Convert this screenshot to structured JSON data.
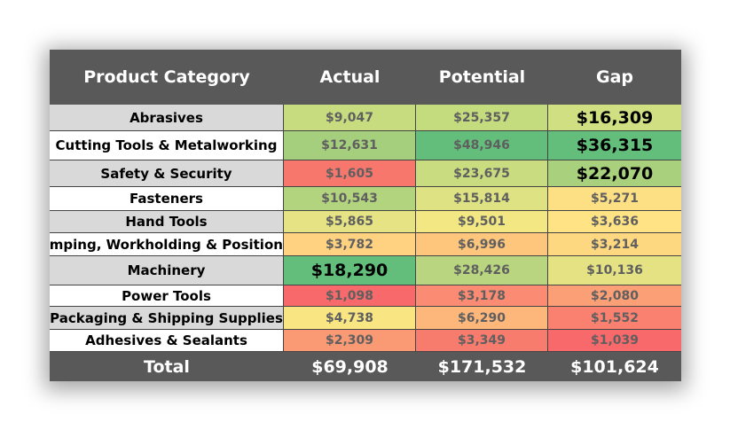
{
  "table": {
    "header": [
      "Product Category",
      "Actual",
      "Potential",
      "Gap"
    ],
    "rows": [
      [
        "Abrasives",
        "$9,047",
        "$25,357",
        "$16,309"
      ],
      [
        "Cutting Tools & Metalworking",
        "$12,631",
        "$48,946",
        "$36,315"
      ],
      [
        "Safety & Security",
        "$1,605",
        "$23,675",
        "$22,070"
      ],
      [
        "Fasteners",
        "$10,543",
        "$15,814",
        "$5,271"
      ],
      [
        "Hand Tools",
        "$5,865",
        "$9,501",
        "$3,636"
      ],
      [
        "Clamping, Workholding & Positioning",
        "$3,782",
        "$6,996",
        "$3,214"
      ],
      [
        "Machinery",
        "$18,290",
        "$28,426",
        "$10,136"
      ],
      [
        "Power Tools",
        "$1,098",
        "$3,178",
        "$2,080"
      ],
      [
        "Packaging & Shipping Supplies",
        "$4,738",
        "$6,290",
        "$1,552"
      ],
      [
        "Adhesives & Sealants",
        "$2,309",
        "$3,349",
        "$1,039"
      ]
    ],
    "total": [
      "Total",
      "$69,908",
      "$171,532",
      "$101,624"
    ]
  }
}
